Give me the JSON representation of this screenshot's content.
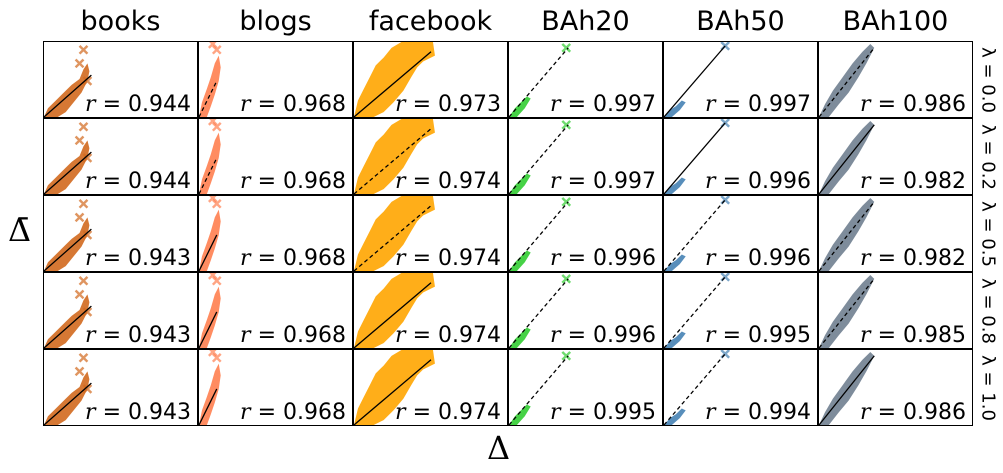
{
  "chart_data": {
    "type": "scatter",
    "title": "",
    "xlabel": "Δ",
    "ylabel": "Δ̄",
    "columns": [
      "books",
      "blogs",
      "facebook",
      "BAh20",
      "BAh50",
      "BAh100"
    ],
    "rows": [
      "λ = 0.0",
      "λ = 0.2",
      "λ = 0.5",
      "λ = 0.8",
      "λ = 1.0"
    ],
    "colors": {
      "books": "#d2691e",
      "blogs": "#ff7f50",
      "facebook": "#ffa500",
      "BAh20": "#32cd32",
      "BAh50": "#4682b4",
      "BAh100": "#708090"
    },
    "correlations": [
      {
        "lambda": 0.0,
        "books": 0.944,
        "blogs": 0.968,
        "facebook": 0.973,
        "BAh20": 0.997,
        "BAh50": 0.997,
        "BAh100": 0.986
      },
      {
        "lambda": 0.2,
        "books": 0.944,
        "blogs": 0.968,
        "facebook": 0.974,
        "BAh20": 0.997,
        "BAh50": 0.996,
        "BAh100": 0.982
      },
      {
        "lambda": 0.5,
        "books": 0.943,
        "blogs": 0.968,
        "facebook": 0.974,
        "BAh20": 0.996,
        "BAh50": 0.996,
        "BAh100": 0.982
      },
      {
        "lambda": 0.8,
        "books": 0.943,
        "blogs": 0.968,
        "facebook": 0.974,
        "BAh20": 0.996,
        "BAh50": 0.995,
        "BAh100": 0.985
      },
      {
        "lambda": 1.0,
        "books": 0.943,
        "blogs": 0.968,
        "facebook": 0.974,
        "BAh20": 0.995,
        "BAh50": 0.994,
        "BAh100": 0.986
      }
    ],
    "annotation_format": "r = value",
    "marker": "x",
    "grid": false,
    "ticks": false
  },
  "figure": {
    "col_titles": [
      "books",
      "blogs",
      "facebook",
      "BAh20",
      "BAh50",
      "BAh100"
    ],
    "row_labels": [
      "λ = 0.0",
      "λ = 0.2",
      "λ = 0.5",
      "λ = 0.8",
      "λ = 1.0"
    ],
    "xlabel": "Δ",
    "ylabel": "Δ̄",
    "r_symbol": "r",
    "r_values": [
      [
        "= 0.944",
        "= 0.968",
        "= 0.973",
        "= 0.997",
        "= 0.997",
        "= 0.986"
      ],
      [
        "= 0.944",
        "= 0.968",
        "= 0.974",
        "= 0.997",
        "= 0.996",
        "= 0.982"
      ],
      [
        "= 0.943",
        "= 0.968",
        "= 0.974",
        "= 0.996",
        "= 0.996",
        "= 0.982"
      ],
      [
        "= 0.943",
        "= 0.968",
        "= 0.974",
        "= 0.996",
        "= 0.995",
        "= 0.985"
      ],
      [
        "= 0.943",
        "= 0.968",
        "= 0.974",
        "= 0.995",
        "= 0.994",
        "= 0.986"
      ]
    ]
  }
}
